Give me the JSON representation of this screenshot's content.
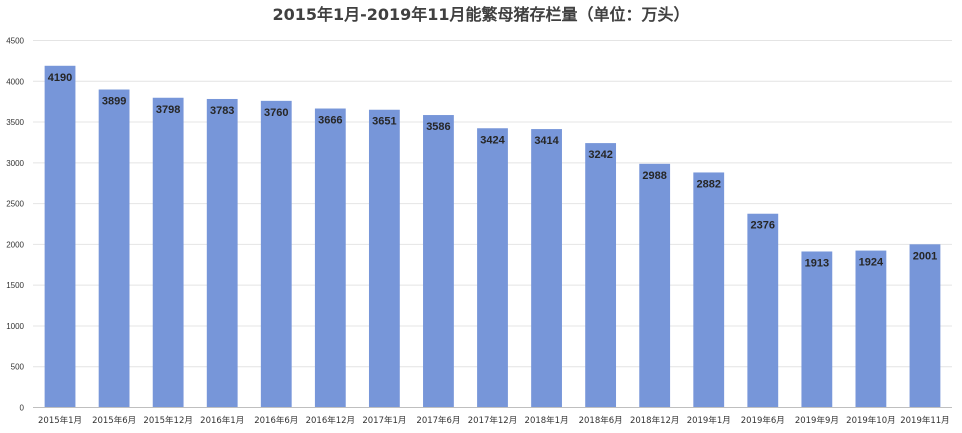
{
  "chart_data": {
    "type": "bar",
    "title": "2015年1月-2019年11月能繁母猪存栏量（单位：万头）",
    "categories": [
      "2015年1月",
      "2015年6月",
      "2015年12月",
      "2016年1月",
      "2016年6月",
      "2016年12月",
      "2017年1月",
      "2017年6月",
      "2017年12月",
      "2018年1月",
      "2018年6月",
      "2018年12月",
      "2019年1月",
      "2019年6月",
      "2019年9月",
      "2019年10月",
      "2019年11月"
    ],
    "values": [
      4190,
      3899,
      3798,
      3783,
      3760,
      3666,
      3651,
      3586,
      3424,
      3414,
      3242,
      2988,
      2882,
      2376,
      1913,
      1924,
      2001
    ],
    "ylim": [
      0,
      4500
    ],
    "yticks": [
      0,
      500,
      1000,
      1500,
      2000,
      2500,
      3000,
      3500,
      4000,
      4500
    ],
    "grid": true,
    "data_labels": true,
    "bar_color": "#7796d9"
  }
}
